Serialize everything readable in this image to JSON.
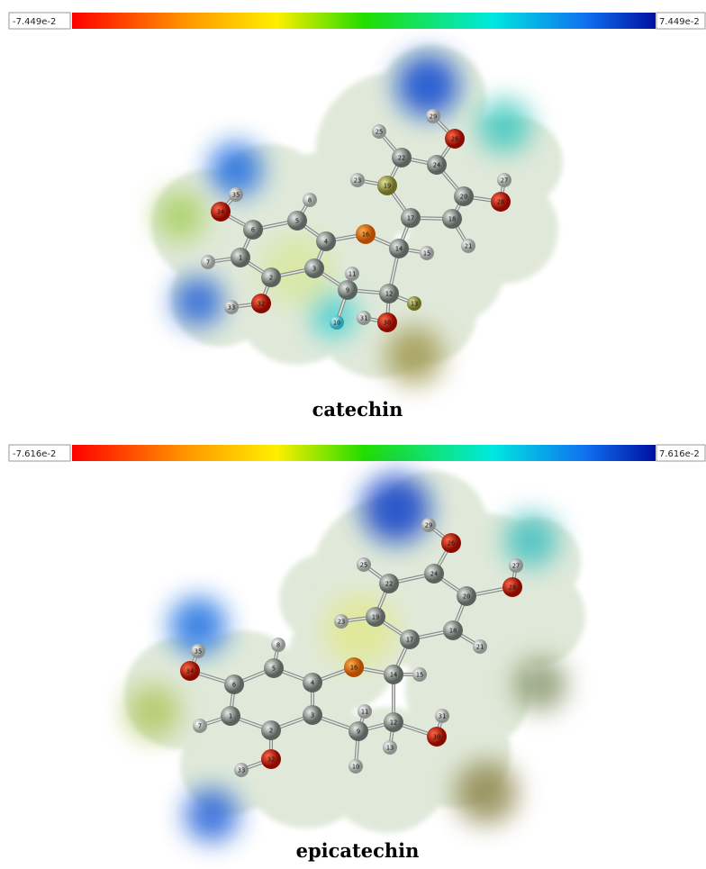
{
  "panels": [
    {
      "scale": {
        "min_label": "-7.449e-2",
        "max_label": "7.449e-2"
      },
      "atoms": [
        "1",
        "2",
        "3",
        "4",
        "5",
        "6",
        "7",
        "8",
        "9",
        "10",
        "11",
        "12",
        "13",
        "14",
        "15",
        "16",
        "17",
        "18",
        "19",
        "20",
        "21",
        "22",
        "23",
        "24",
        "25",
        "26",
        "27",
        "28",
        "29",
        "30",
        "31",
        "32",
        "33",
        "34",
        "35"
      ],
      "caption": "catechin"
    },
    {
      "scale": {
        "min_label": "-7.616e-2",
        "max_label": "7.616e-2"
      },
      "atoms": [
        "1",
        "2",
        "3",
        "4",
        "5",
        "6",
        "7",
        "8",
        "9",
        "10",
        "11",
        "12",
        "13",
        "14",
        "15",
        "16",
        "17",
        "18",
        "19",
        "20",
        "21",
        "22",
        "23",
        "24",
        "25",
        "26",
        "27",
        "28",
        "29",
        "30",
        "31",
        "32",
        "33",
        "34",
        "35"
      ],
      "caption": "epicatechin"
    }
  ]
}
